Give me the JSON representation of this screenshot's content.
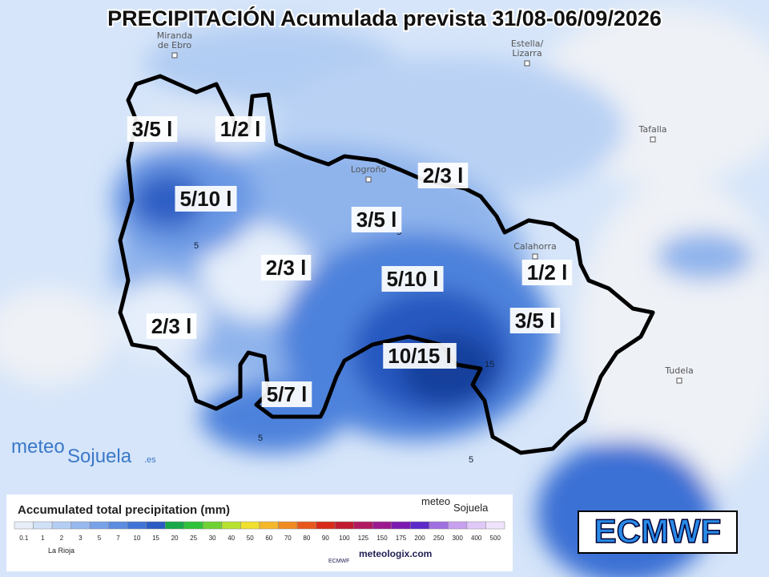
{
  "title": "PRECIPITACIÓN Acumulada prevista 31/08-06/09/2026",
  "cities": [
    {
      "lines": [
        "Miranda",
        "de Ebro"
      ]
    },
    {
      "lines": [
        "Estella/",
        "Lizarra"
      ]
    },
    {
      "lines": [
        "Tafalla"
      ]
    },
    {
      "lines": [
        "Logroño"
      ]
    },
    {
      "lines": [
        "Calahorra"
      ]
    },
    {
      "lines": [
        "Tudela"
      ]
    }
  ],
  "zone_labels": [
    "3/5 l",
    "1/2 l",
    "2/3 l",
    "5/10 l",
    "3/5 l",
    "2/3 l",
    "5/10 l",
    "1/2 l",
    "2/3 l",
    "3/5 l",
    "10/15 l",
    "5/7 l"
  ],
  "contour_labels": [
    5,
    5,
    5,
    5,
    15
  ],
  "logo": {
    "name": "meteo",
    "place": "Sojuela",
    "suffix": ".es"
  },
  "legend": {
    "title": "Accumulated total precipitation (mm)",
    "ticks": [
      0.1,
      1,
      2,
      3,
      5,
      7,
      10,
      15,
      20,
      25,
      30,
      40,
      50,
      60,
      70,
      80,
      90,
      100,
      125,
      150,
      175,
      200,
      250,
      300,
      400,
      500
    ],
    "colors": [
      "#e8eef8",
      "#cfe0f7",
      "#b4cdf3",
      "#96b8ee",
      "#78a2e8",
      "#5b8ce0",
      "#3f74d6",
      "#2a5cc4",
      "#17a84a",
      "#2fc23a",
      "#6fd234",
      "#b8e030",
      "#f0e030",
      "#f5b82a",
      "#f08a22",
      "#e8581c",
      "#d82a18",
      "#c01a30",
      "#b01a60",
      "#9c1a90",
      "#7c1ab0",
      "#5c2ac8",
      "#a070e0",
      "#c8a0f0",
      "#e0c8f8",
      "#f0e4fc"
    ],
    "region": "La Rioja",
    "brand": "meteologix.com",
    "model_small": "ECMWF"
  },
  "model": "ECMWF"
}
